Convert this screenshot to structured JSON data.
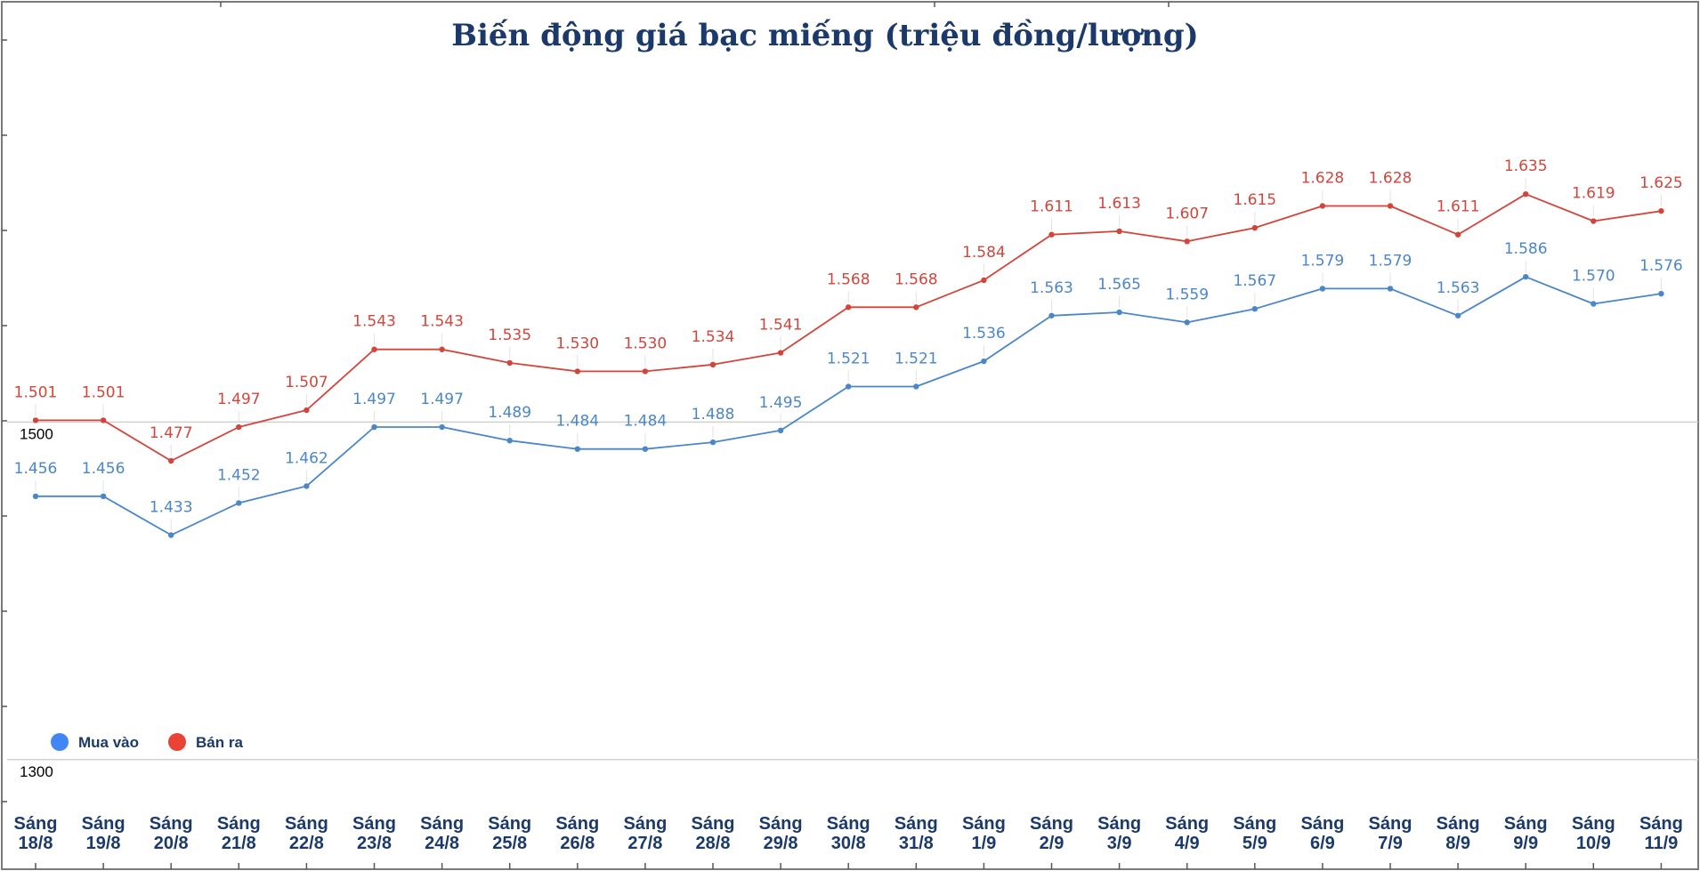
{
  "chart_data": {
    "type": "line",
    "title": "Biến động giá bạc miếng (triệu đồng/lượng)",
    "xlabel": "",
    "ylabel": "",
    "ylim": [
      1234,
      1750
    ],
    "yticks": [
      {
        "value": 1500,
        "label": "1500"
      },
      {
        "value": 1300,
        "label": "1300"
      }
    ],
    "grid": "horizontal lines at labeled y ticks",
    "legend_position": "bottom-left",
    "categories": [
      [
        "Sáng",
        "18/8"
      ],
      [
        "Sáng",
        "19/8"
      ],
      [
        "Sáng",
        "20/8"
      ],
      [
        "Sáng",
        "21/8"
      ],
      [
        "Sáng",
        "22/8"
      ],
      [
        "Sáng",
        "23/8"
      ],
      [
        "Sáng",
        "24/8"
      ],
      [
        "Sáng",
        "25/8"
      ],
      [
        "Sáng",
        "26/8"
      ],
      [
        "Sáng",
        "27/8"
      ],
      [
        "Sáng",
        "28/8"
      ],
      [
        "Sáng",
        "29/8"
      ],
      [
        "Sáng",
        "30/8"
      ],
      [
        "Sáng",
        "31/8"
      ],
      [
        "Sáng",
        "1/9"
      ],
      [
        "Sáng",
        "2/9"
      ],
      [
        "Sáng",
        "3/9"
      ],
      [
        "Sáng",
        "4/9"
      ],
      [
        "Sáng",
        "5/9"
      ],
      [
        "Sáng",
        "6/9"
      ],
      [
        "Sáng",
        "7/9"
      ],
      [
        "Sáng",
        "8/9"
      ],
      [
        "Sáng",
        "9/9"
      ],
      [
        "Sáng",
        "10/9"
      ],
      [
        "Sáng",
        "11/9"
      ]
    ],
    "series": [
      {
        "name": "Mua vào",
        "color": "#4a86c8",
        "values": [
          1456,
          1456,
          1433,
          1452,
          1462,
          1497,
          1497,
          1489,
          1484,
          1484,
          1488,
          1495,
          1521,
          1521,
          1536,
          1563,
          1565,
          1559,
          1567,
          1579,
          1579,
          1563,
          1586,
          1570,
          1576
        ],
        "labels": [
          "1.456",
          "1.456",
          "1.433",
          "1.452",
          "1.462",
          "1.497",
          "1.497",
          "1.489",
          "1.484",
          "1.484",
          "1.488",
          "1.495",
          "1.521",
          "1.521",
          "1.536",
          "1.563",
          "1.565",
          "1.559",
          "1.567",
          "1.579",
          "1.579",
          "1.563",
          "1.586",
          "1.570",
          "1.576"
        ]
      },
      {
        "name": "Bán ra",
        "color": "#d3453b",
        "values": [
          1501,
          1501,
          1477,
          1497,
          1507,
          1543,
          1543,
          1535,
          1530,
          1530,
          1534,
          1541,
          1568,
          1568,
          1584,
          1611,
          1613,
          1607,
          1615,
          1628,
          1628,
          1611,
          1635,
          1619,
          1625
        ],
        "labels": [
          "1.501",
          "1.501",
          "1.477",
          "1.497",
          "1.507",
          "1.543",
          "1.543",
          "1.535",
          "1.530",
          "1.530",
          "1.534",
          "1.541",
          "1.568",
          "1.568",
          "1.584",
          "1.611",
          "1.613",
          "1.607",
          "1.615",
          "1.628",
          "1.628",
          "1.611",
          "1.635",
          "1.619",
          "1.625"
        ]
      }
    ],
    "legend_marker_colors": {
      "Mua vào": "#4285f4",
      "Bán ra": "#ea4335"
    },
    "colors": {
      "title": "#1b3a6b",
      "axis_text": "#1b3a6b",
      "grid": "#d0d0d0",
      "frame": "#7a7a7a"
    }
  }
}
